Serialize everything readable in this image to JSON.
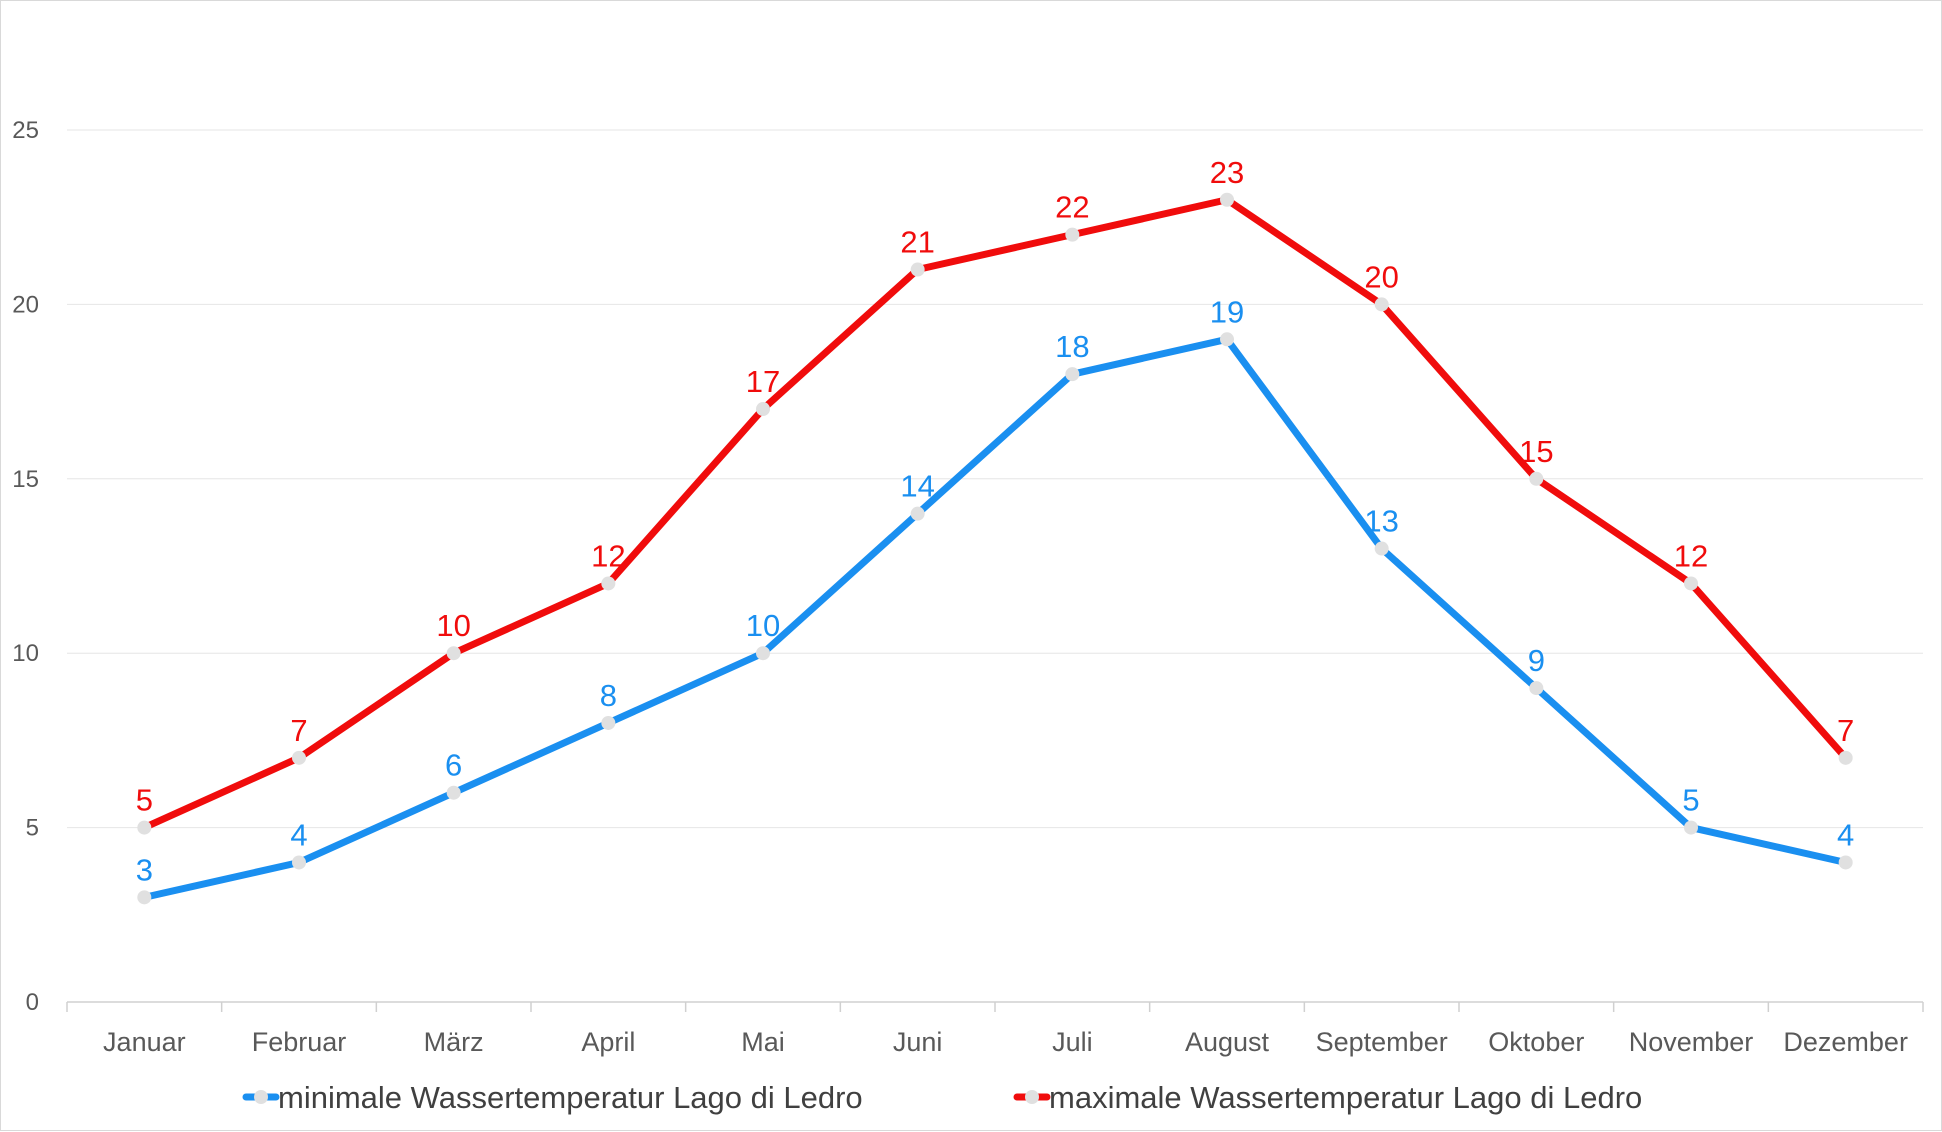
{
  "chart_data": {
    "type": "line",
    "categories": [
      "Januar",
      "Februar",
      "März",
      "April",
      "Mai",
      "Juni",
      "Juli",
      "August",
      "September",
      "Oktober",
      "November",
      "Dezember"
    ],
    "series": [
      {
        "name": "minimale Wassertemperatur Lago di Ledro",
        "color": "#1a8ff0",
        "values": [
          3,
          4,
          6,
          8,
          10,
          14,
          18,
          19,
          13,
          9,
          5,
          4
        ]
      },
      {
        "name": "maximale Wassertemperatur Lago di Ledro",
        "color": "#f00c0c",
        "values": [
          5,
          7,
          10,
          12,
          17,
          21,
          22,
          23,
          20,
          15,
          12,
          7
        ]
      }
    ],
    "ylim": [
      0,
      25
    ],
    "yticks": [
      0,
      5,
      10,
      15,
      20,
      25
    ],
    "grid": true,
    "legend_position": "bottom",
    "marker_color": "#e0e0e0",
    "title": "",
    "xlabel": "",
    "ylabel": ""
  }
}
